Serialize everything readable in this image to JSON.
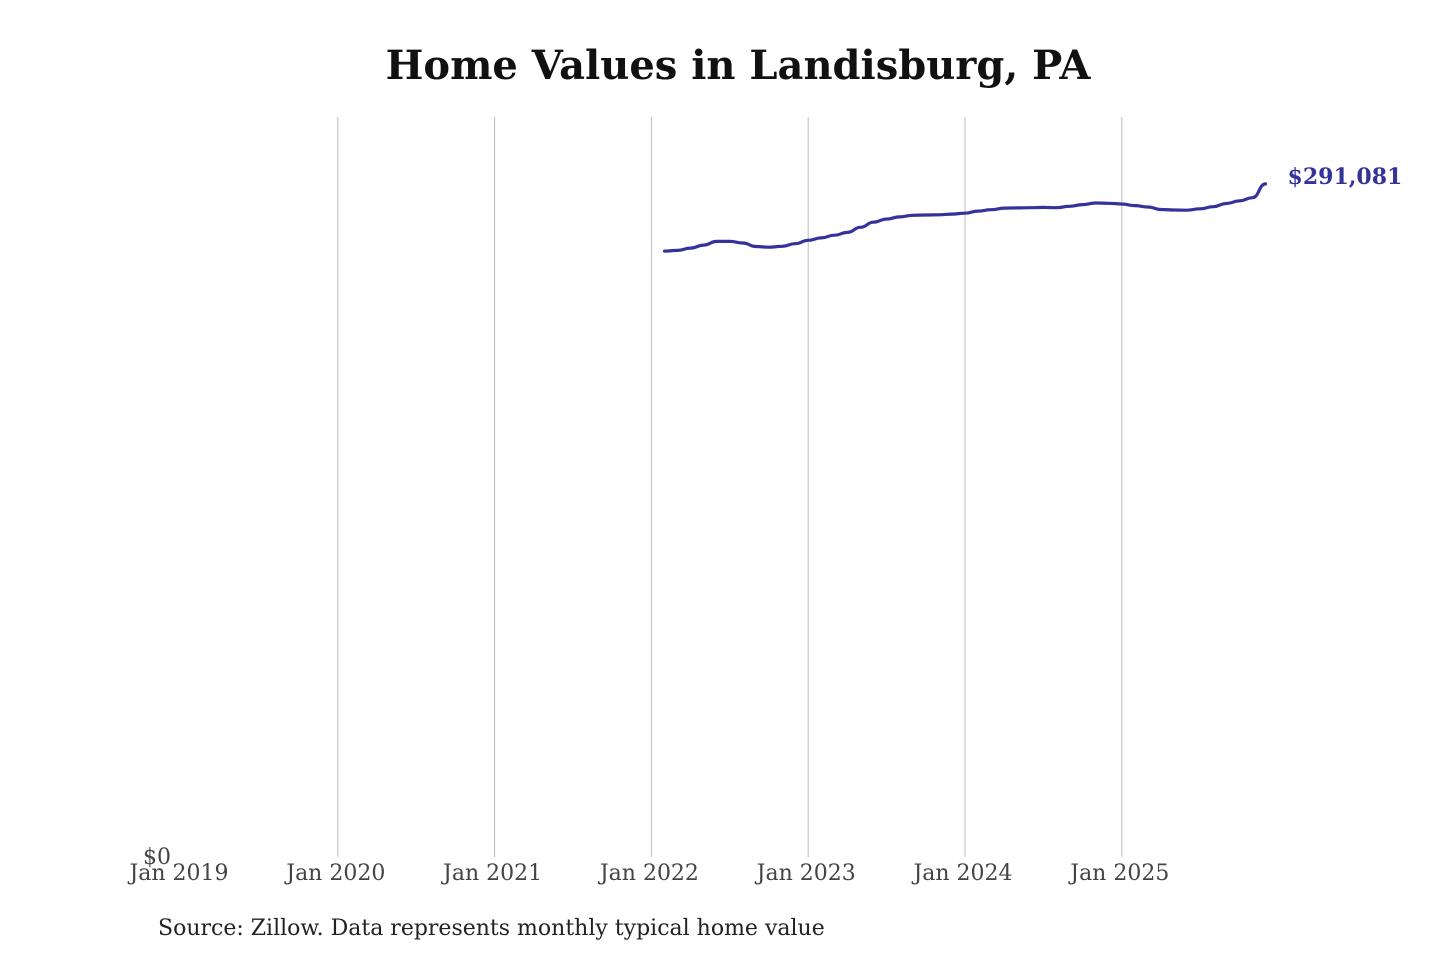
{
  "title": "Home Values in Landisburg, PA",
  "source": "Source: Zillow. Data represents monthly typical home value",
  "colors": {
    "line": "#33339b",
    "grid": "#bbbbbb"
  },
  "chart_data": {
    "type": "line",
    "title": "Home Values in Landisburg, PA",
    "xlabel": "",
    "ylabel": "",
    "x_ticks": [
      "Jan 2019",
      "Jan 2020",
      "Jan 2021",
      "Jan 2022",
      "Jan 2023",
      "Jan 2024",
      "Jan 2025"
    ],
    "y_ticks": [
      "$0"
    ],
    "xlim": [
      "2019-01",
      "2025-12"
    ],
    "ylim": [
      0,
      320000
    ],
    "grid": "vertical",
    "end_label": "$291,081",
    "series": [
      {
        "x": [
          "2022-02",
          "2022-03",
          "2022-04",
          "2022-05",
          "2022-06",
          "2022-07",
          "2022-08",
          "2022-09",
          "2022-10",
          "2022-11",
          "2022-12",
          "2023-01",
          "2023-02",
          "2023-03",
          "2023-04",
          "2023-05",
          "2023-06",
          "2023-07",
          "2023-08",
          "2023-09",
          "2023-10",
          "2023-11",
          "2023-12",
          "2024-01",
          "2024-02",
          "2024-03",
          "2024-04",
          "2024-05",
          "2024-06",
          "2024-07",
          "2024-08",
          "2024-09",
          "2024-10",
          "2024-11",
          "2024-12",
          "2025-01",
          "2025-02",
          "2025-03",
          "2025-04",
          "2025-05",
          "2025-06",
          "2025-07",
          "2025-08",
          "2025-09",
          "2025-10",
          "2025-11",
          "2025-12"
        ],
        "values": [
          262000,
          262300,
          263300,
          264600,
          266200,
          266200,
          265500,
          264000,
          263700,
          264100,
          265200,
          266700,
          267700,
          268900,
          270100,
          272300,
          274500,
          275900,
          276800,
          277500,
          277600,
          277700,
          278000,
          278400,
          279300,
          279900,
          280600,
          280700,
          280800,
          280900,
          280800,
          281400,
          282100,
          282800,
          282700,
          282400,
          281700,
          281100,
          280000,
          279800,
          279700,
          280300,
          281200,
          282600,
          283700,
          285100,
          291081
        ]
      }
    ]
  }
}
